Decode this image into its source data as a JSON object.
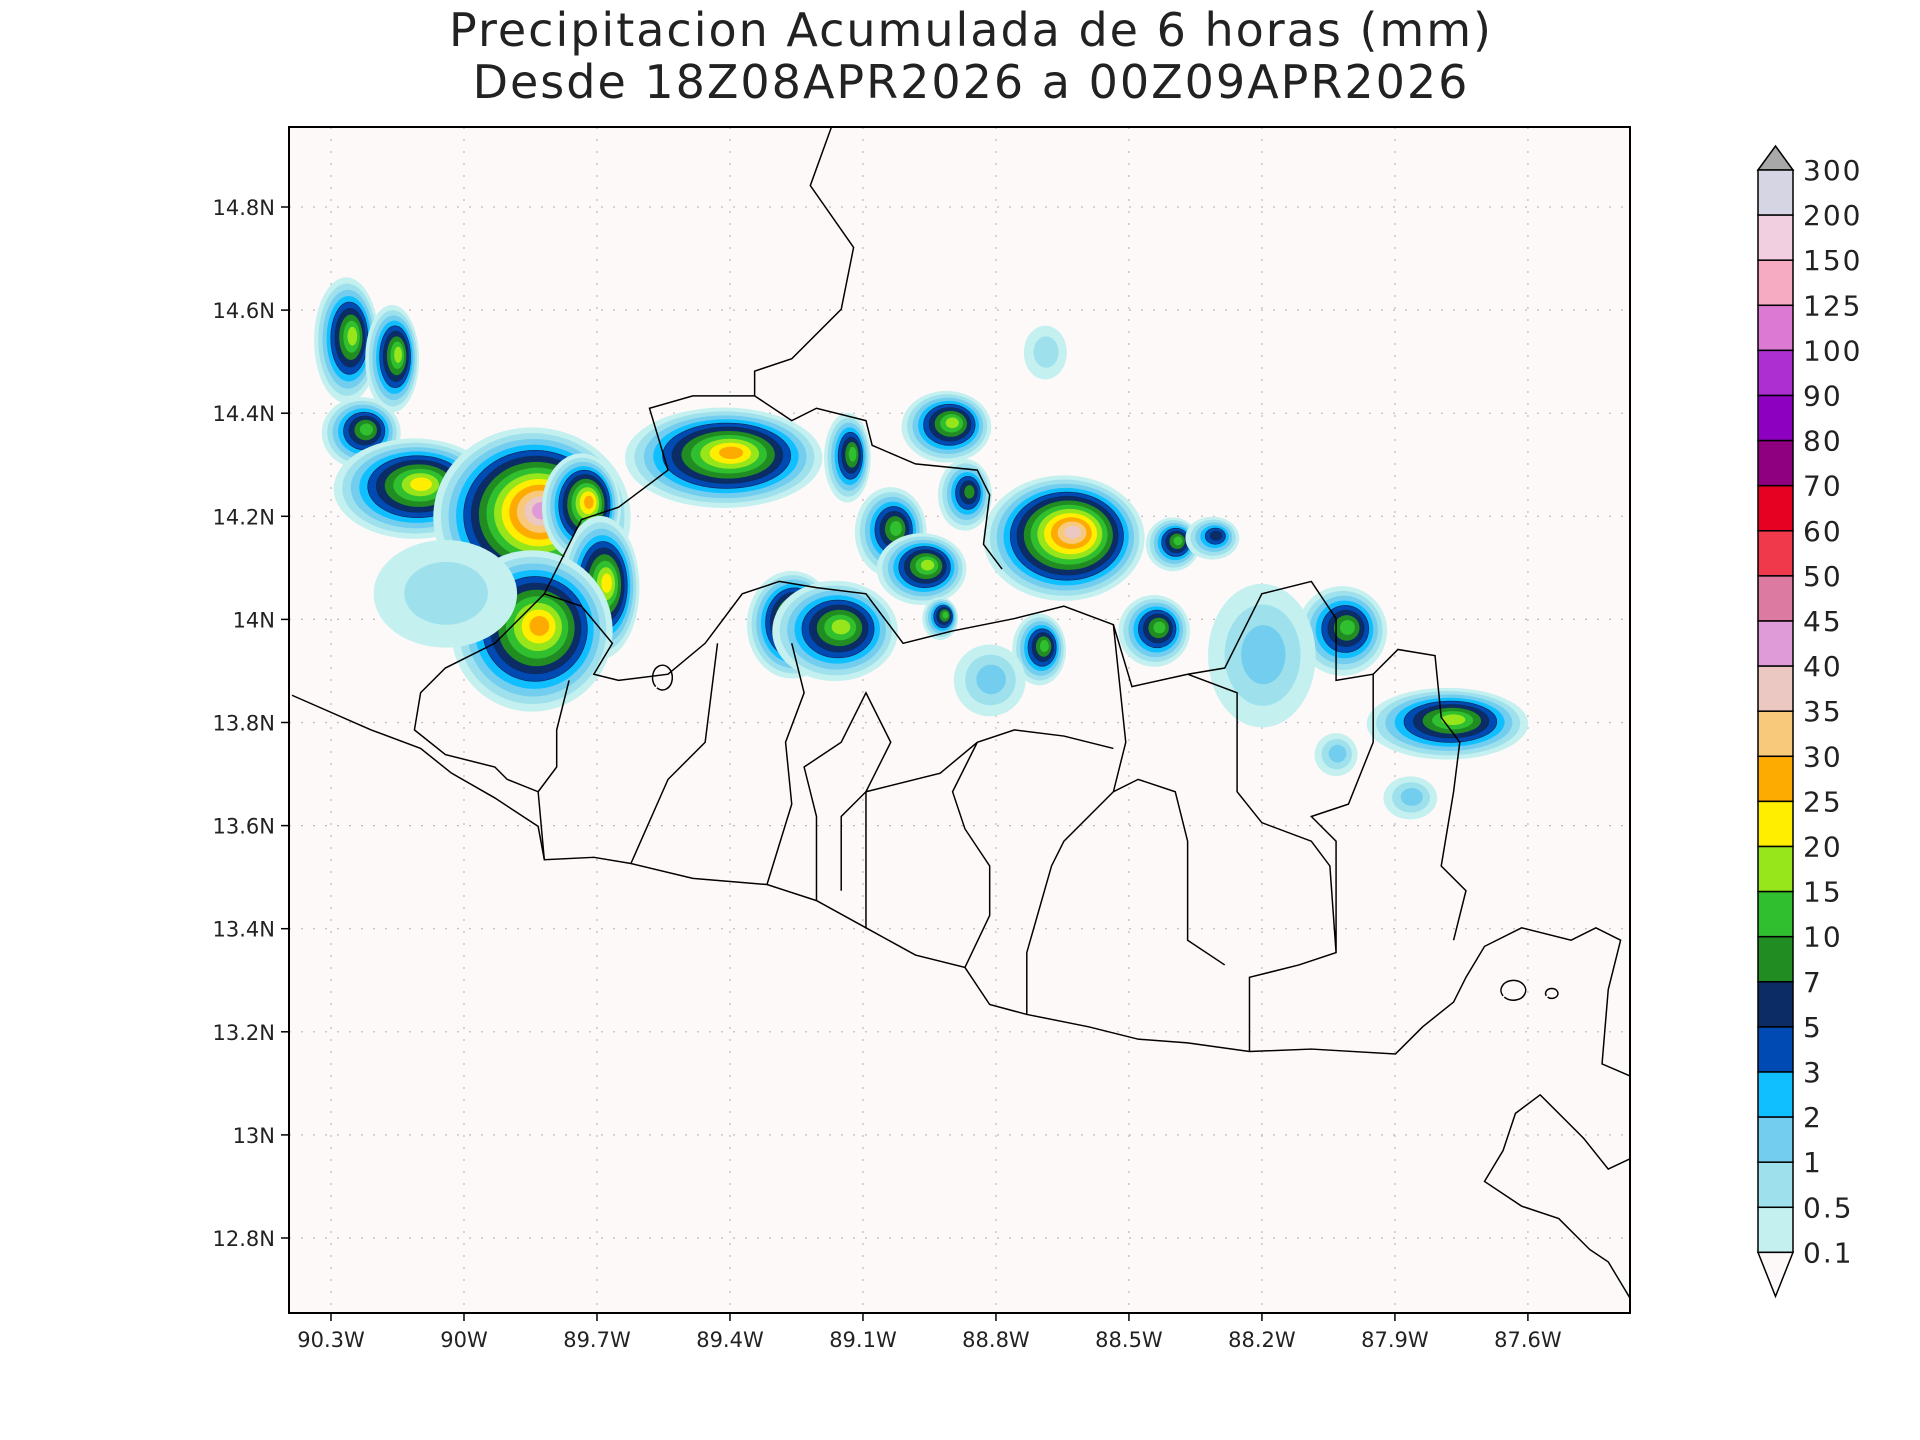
{
  "title": {
    "line1": "Precipitacion Acumulada de 6 horas (mm)",
    "line2": "Desde 18Z08APR2026 a 00Z09APR2026"
  },
  "map": {
    "background": "#fdf9f8",
    "lon_ticks": [
      "90.3W",
      "90W",
      "89.7W",
      "89.4W",
      "89.1W",
      "88.8W",
      "88.5W",
      "88.2W",
      "87.9W",
      "87.6W"
    ],
    "lon_values": [
      -90.3,
      -90.0,
      -89.7,
      -89.4,
      -89.1,
      -88.8,
      -88.5,
      -88.2,
      -87.9,
      -87.6
    ],
    "lat_ticks": [
      "14.8N",
      "14.6N",
      "14.4N",
      "14.2N",
      "14N",
      "13.8N",
      "13.6N",
      "13.4N",
      "13.2N",
      "13N",
      "12.8N"
    ],
    "lat_values": [
      14.8,
      14.6,
      14.4,
      14.2,
      14.0,
      13.8,
      13.6,
      13.4,
      13.2,
      13.0,
      12.8
    ],
    "grid": "dotted"
  },
  "colorbar": {
    "labels": [
      "300",
      "200",
      "150",
      "125",
      "100",
      "90",
      "80",
      "70",
      "60",
      "50",
      "45",
      "40",
      "35",
      "30",
      "25",
      "20",
      "15",
      "10",
      "7",
      "5",
      "3",
      "2",
      "1",
      "0.5",
      "0.1"
    ],
    "top_arrow_color": "#a8a8a8",
    "bottom_arrow_color": "#fdf9f8",
    "colors_top_to_bottom": [
      "#d5d5e3",
      "#f1cfe1",
      "#f7abc3",
      "#dc7ad3",
      "#ad2fd2",
      "#8e00bf",
      "#8e0080",
      "#e60022",
      "#f03a4b",
      "#dc7aa2",
      "#de9bd8",
      "#ecc8c2",
      "#f8c97a",
      "#fdab00",
      "#ffee00",
      "#96e61b",
      "#2fbf2f",
      "#218c22",
      "#0b2c64",
      "#004bb3",
      "#10bfff",
      "#72cdee",
      "#9ee1ed",
      "#c4f0ef"
    ]
  }
}
